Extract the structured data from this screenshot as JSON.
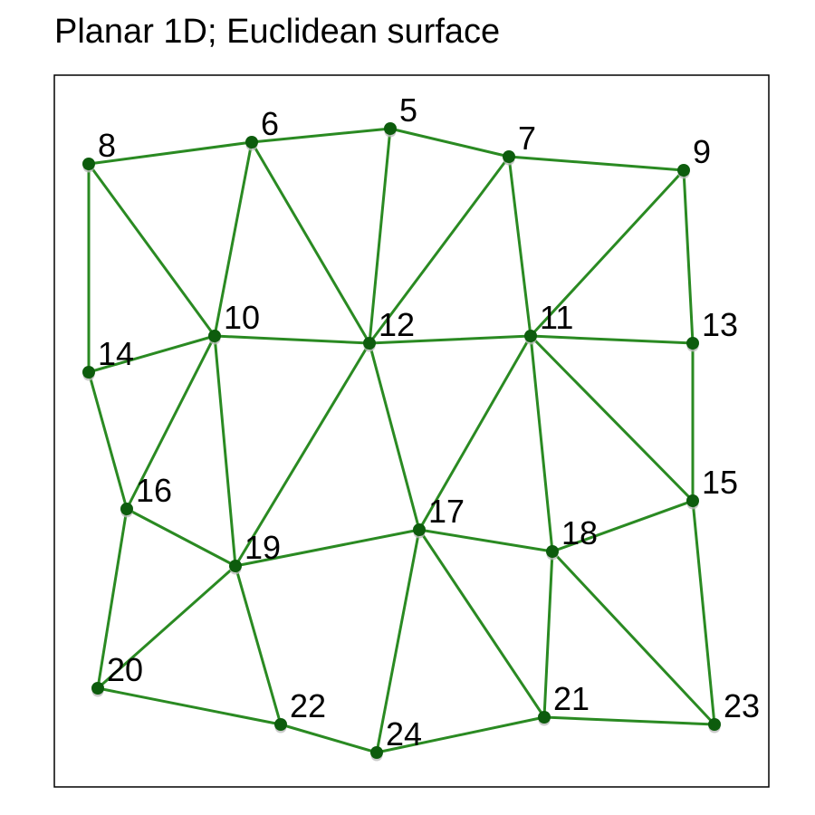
{
  "title": "Planar 1D; Euclidean surface",
  "colors": {
    "edge": "#2a8a22",
    "node": "#0d5c0d",
    "node_shadow": "#b8b8b8",
    "label": "#000000",
    "frame": "#000000"
  },
  "nodes": [
    {
      "id": "5",
      "label": "5"
    },
    {
      "id": "6",
      "label": "6"
    },
    {
      "id": "7",
      "label": "7"
    },
    {
      "id": "8",
      "label": "8"
    },
    {
      "id": "9",
      "label": "9"
    },
    {
      "id": "10",
      "label": "10"
    },
    {
      "id": "11",
      "label": "11"
    },
    {
      "id": "12",
      "label": "12"
    },
    {
      "id": "13",
      "label": "13"
    },
    {
      "id": "14",
      "label": "14"
    },
    {
      "id": "15",
      "label": "15"
    },
    {
      "id": "16",
      "label": "16"
    },
    {
      "id": "17",
      "label": "17"
    },
    {
      "id": "18",
      "label": "18"
    },
    {
      "id": "19",
      "label": "19"
    },
    {
      "id": "20",
      "label": "20"
    },
    {
      "id": "21",
      "label": "21"
    },
    {
      "id": "22",
      "label": "22"
    },
    {
      "id": "23",
      "label": "23"
    },
    {
      "id": "24",
      "label": "24"
    }
  ],
  "edges": [
    [
      "8",
      "6"
    ],
    [
      "6",
      "5"
    ],
    [
      "5",
      "7"
    ],
    [
      "7",
      "9"
    ],
    [
      "8",
      "14"
    ],
    [
      "8",
      "10"
    ],
    [
      "6",
      "10"
    ],
    [
      "6",
      "12"
    ],
    [
      "5",
      "12"
    ],
    [
      "7",
      "12"
    ],
    [
      "7",
      "11"
    ],
    [
      "9",
      "11"
    ],
    [
      "9",
      "13"
    ],
    [
      "14",
      "10"
    ],
    [
      "10",
      "12"
    ],
    [
      "12",
      "11"
    ],
    [
      "11",
      "13"
    ],
    [
      "14",
      "16"
    ],
    [
      "10",
      "16"
    ],
    [
      "10",
      "19"
    ],
    [
      "12",
      "19"
    ],
    [
      "12",
      "17"
    ],
    [
      "11",
      "17"
    ],
    [
      "11",
      "18"
    ],
    [
      "11",
      "15"
    ],
    [
      "13",
      "15"
    ],
    [
      "16",
      "19"
    ],
    [
      "16",
      "20"
    ],
    [
      "19",
      "17"
    ],
    [
      "17",
      "18"
    ],
    [
      "18",
      "15"
    ],
    [
      "19",
      "20"
    ],
    [
      "19",
      "22"
    ],
    [
      "17",
      "24"
    ],
    [
      "17",
      "21"
    ],
    [
      "18",
      "21"
    ],
    [
      "18",
      "23"
    ],
    [
      "15",
      "23"
    ],
    [
      "20",
      "22"
    ],
    [
      "22",
      "24"
    ],
    [
      "24",
      "21"
    ],
    [
      "21",
      "23"
    ]
  ]
}
